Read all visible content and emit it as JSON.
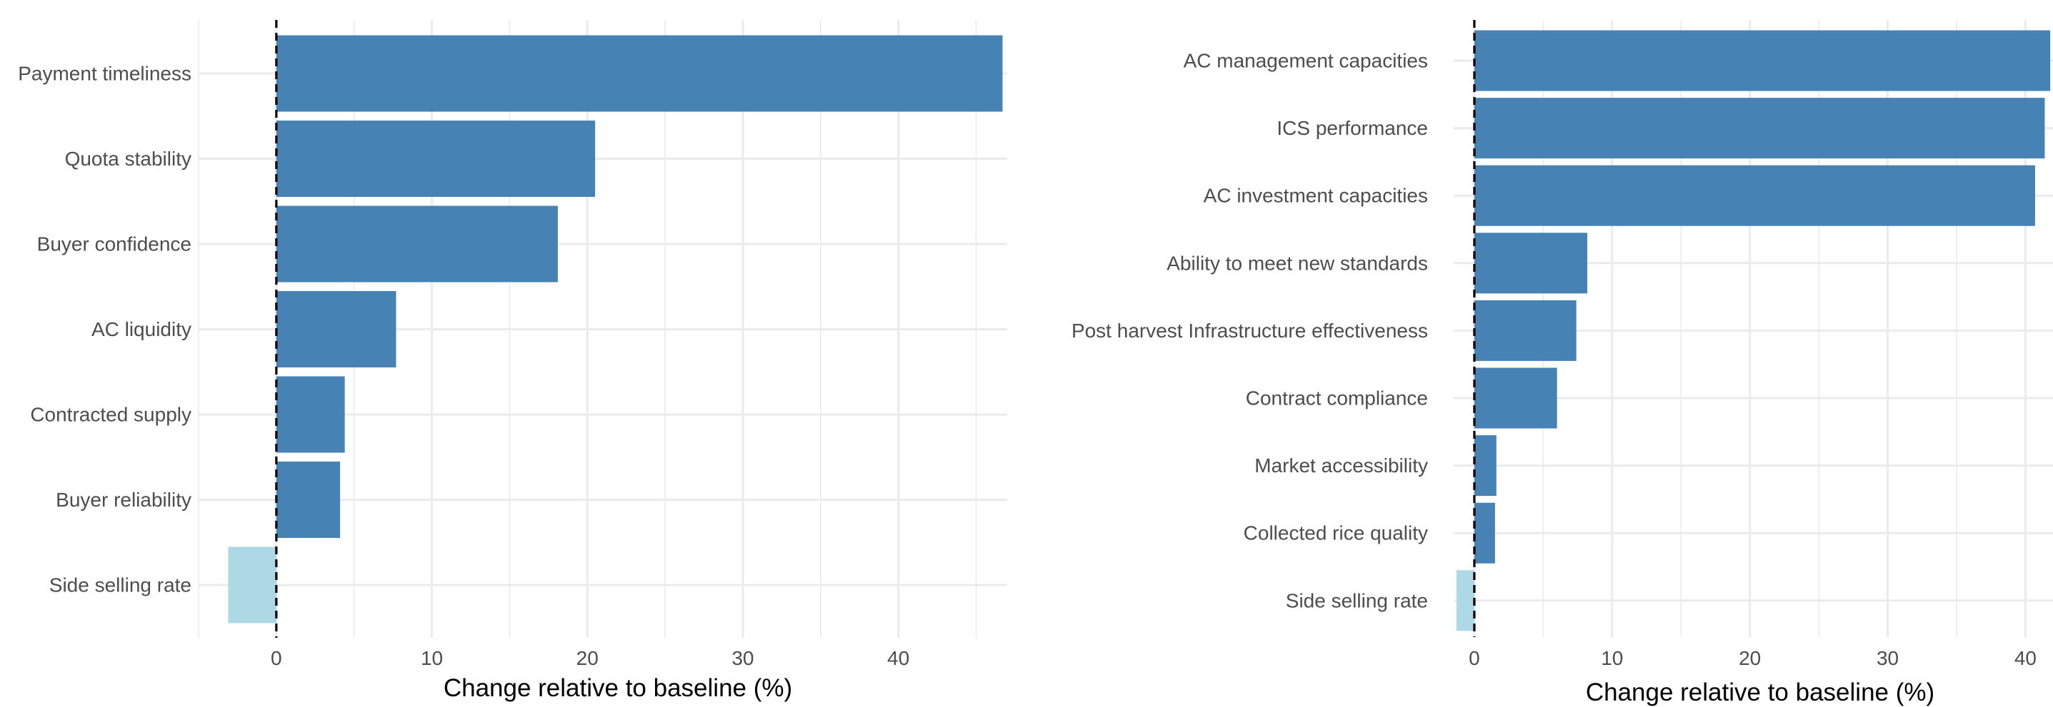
{
  "chart_data": [
    {
      "type": "bar",
      "orientation": "horizontal",
      "categories": [
        "Payment timeliness",
        "Quota stability",
        "Buyer confidence",
        "AC liquidity",
        "Contracted supply",
        "Buyer reliability",
        "Side selling rate"
      ],
      "values": [
        46.7,
        20.5,
        18.1,
        7.7,
        4.4,
        4.1,
        -3.1
      ],
      "xlabel": "Change relative to baseline (%)",
      "ylabel": "",
      "xlim": [
        -5,
        47
      ],
      "xticks": [
        0,
        10,
        20,
        30,
        40
      ],
      "reference_line": 0,
      "grid": true,
      "colors": {
        "positive": "#4682b4",
        "negative": "#add8e6",
        "grid": "#ebebeb",
        "text": "#4d4d4d",
        "axis_title": "#000000"
      }
    },
    {
      "type": "bar",
      "orientation": "horizontal",
      "categories": [
        "AC management capacities",
        "ICS performance",
        "AC investment capacities",
        "Ability to meet new standards",
        "Post harvest Infrastructure effectiveness",
        "Contract compliance",
        "Market accessibility",
        "Collected rice quality",
        "Side selling rate"
      ],
      "values": [
        41.8,
        41.4,
        40.7,
        8.2,
        7.4,
        6.0,
        1.6,
        1.5,
        -1.3
      ],
      "xlabel": "Change relative to baseline (%)",
      "ylabel": "",
      "xlim": [
        -1.5,
        42
      ],
      "xticks": [
        0,
        10,
        20,
        30,
        40
      ],
      "reference_line": 0,
      "grid": true,
      "colors": {
        "positive": "#4682b4",
        "negative": "#add8e6",
        "grid": "#ebebeb",
        "text": "#4d4d4d",
        "axis_title": "#000000"
      }
    }
  ]
}
